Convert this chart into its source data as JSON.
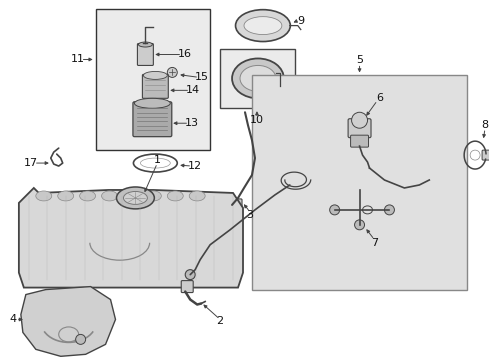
{
  "bg_color": "#ffffff",
  "lc": "#444444",
  "fig_width": 4.9,
  "fig_height": 3.6,
  "dpi": 100
}
